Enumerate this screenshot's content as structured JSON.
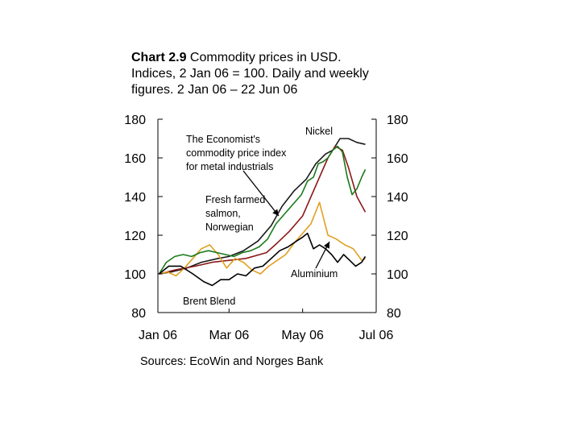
{
  "title": {
    "prefix": "Chart 2.9",
    "text": "Commodity prices in USD. Indices, 2 Jan 06 = 100. Daily and weekly figures. 2 Jan 06 – 22 Jun 06"
  },
  "source": "Sources: EcoWin and Norges Bank",
  "chart_data": {
    "type": "line",
    "title": "Chart 2.9 Commodity prices in USD. Indices, 2 Jan 06 = 100. Daily and weekly figures. 2 Jan 06 – 22 Jun 06",
    "xlim": [
      "2006-01-01",
      "2006-07-01"
    ],
    "ylim": [
      80,
      180
    ],
    "yticks": [
      80,
      100,
      120,
      140,
      160,
      180
    ],
    "xtick_labels": [
      "Jan 06",
      "Mar 06",
      "May 06",
      "Jul 06"
    ],
    "xtick_dates": [
      "2006-01-01",
      "2006-03-01",
      "2006-05-01",
      "2006-07-01"
    ],
    "grid": false,
    "legend": "none (inline annotations)",
    "annotations": [
      {
        "text": "Nickel",
        "series": "Nickel"
      },
      {
        "text": "The Economist's commodity price index for metal industrials",
        "series": "The Economist's commodity price index for metal industrials",
        "lines": [
          "The Economist's",
          "commodity price index",
          "for metal industrials"
        ]
      },
      {
        "text": "Fresh farmed salmon, Norwegian",
        "series": "Fresh farmed salmon, Norwegian",
        "lines": [
          "Fresh farmed",
          "salmon,",
          "Norwegian"
        ]
      },
      {
        "text": "Aluminium",
        "series": "Aluminium"
      },
      {
        "text": "Brent Blend",
        "series": "Brent Blend"
      }
    ],
    "series": [
      {
        "name": "Nickel",
        "color": "#1a1a1a",
        "style": "daily",
        "x": [
          "2006-01-02",
          "2006-01-12",
          "2006-01-25",
          "2006-02-06",
          "2006-02-20",
          "2006-03-01",
          "2006-03-13",
          "2006-03-25",
          "2006-04-05",
          "2006-04-14",
          "2006-04-24",
          "2006-05-04",
          "2006-05-12",
          "2006-05-20",
          "2006-05-26",
          "2006-06-01",
          "2006-06-08",
          "2006-06-15",
          "2006-06-22"
        ],
        "y": [
          100,
          101,
          103,
          106,
          108,
          109,
          112,
          117,
          125,
          135,
          143,
          149,
          157,
          162,
          164,
          170,
          170,
          168,
          167
        ]
      },
      {
        "name": "The Economist's commodity price index for metal industrials",
        "color": "#8b1a1a",
        "style": "daily",
        "x": [
          "2006-01-02",
          "2006-01-15",
          "2006-02-01",
          "2006-02-15",
          "2006-03-01",
          "2006-03-15",
          "2006-04-01",
          "2006-04-10",
          "2006-04-20",
          "2006-05-01",
          "2006-05-08",
          "2006-05-15",
          "2006-05-22",
          "2006-05-28",
          "2006-06-03",
          "2006-06-08",
          "2006-06-15",
          "2006-06-22"
        ],
        "y": [
          100,
          102,
          104,
          106,
          107,
          108,
          111,
          116,
          122,
          130,
          140,
          150,
          160,
          166,
          164,
          155,
          140,
          132
        ]
      },
      {
        "name": "Fresh farmed salmon, Norwegian",
        "color": "#e0a020",
        "style": "weekly",
        "x": [
          "2006-01-02",
          "2006-01-09",
          "2006-01-16",
          "2006-01-23",
          "2006-01-30",
          "2006-02-06",
          "2006-02-13",
          "2006-02-20",
          "2006-02-27",
          "2006-03-06",
          "2006-03-13",
          "2006-03-20",
          "2006-03-27",
          "2006-04-03",
          "2006-04-10",
          "2006-04-17",
          "2006-04-24",
          "2006-05-01",
          "2006-05-08",
          "2006-05-15",
          "2006-05-22",
          "2006-05-29",
          "2006-06-05",
          "2006-06-12",
          "2006-06-19",
          "2006-06-22"
        ],
        "y": [
          100,
          101,
          99,
          103,
          108,
          113,
          115,
          110,
          103,
          108,
          106,
          102,
          100,
          104,
          107,
          110,
          116,
          121,
          126,
          137,
          120,
          118,
          115,
          113,
          107,
          108
        ]
      },
      {
        "name": "Aluminium",
        "color": "#1a7a1a",
        "style": "daily",
        "x": [
          "2006-01-02",
          "2006-01-08",
          "2006-01-15",
          "2006-01-22",
          "2006-01-29",
          "2006-02-05",
          "2006-02-12",
          "2006-02-19",
          "2006-02-26",
          "2006-03-05",
          "2006-03-12",
          "2006-03-19",
          "2006-03-26",
          "2006-04-02",
          "2006-04-09",
          "2006-04-16",
          "2006-04-23",
          "2006-04-30",
          "2006-05-05",
          "2006-05-10",
          "2006-05-14",
          "2006-05-18",
          "2006-05-22",
          "2006-05-26",
          "2006-05-30",
          "2006-06-03",
          "2006-06-07",
          "2006-06-11",
          "2006-06-15",
          "2006-06-19",
          "2006-06-22"
        ],
        "y": [
          100,
          106,
          109,
          110,
          109,
          111,
          112,
          111,
          110,
          109,
          111,
          112,
          114,
          118,
          126,
          131,
          136,
          141,
          148,
          150,
          157,
          158,
          160,
          164,
          166,
          163,
          150,
          141,
          144,
          150,
          154
        ]
      },
      {
        "name": "Brent Blend",
        "color": "#000000",
        "style": "daily",
        "x": [
          "2006-01-02",
          "2006-01-10",
          "2006-01-20",
          "2006-01-30",
          "2006-02-08",
          "2006-02-15",
          "2006-02-22",
          "2006-03-01",
          "2006-03-08",
          "2006-03-15",
          "2006-03-22",
          "2006-03-29",
          "2006-04-05",
          "2006-04-12",
          "2006-04-19",
          "2006-04-26",
          "2006-05-01",
          "2006-05-05",
          "2006-05-10",
          "2006-05-15",
          "2006-05-20",
          "2006-05-25",
          "2006-05-30",
          "2006-06-04",
          "2006-06-09",
          "2006-06-14",
          "2006-06-19",
          "2006-06-22"
        ],
        "y": [
          100,
          104,
          104,
          100,
          96,
          94,
          97,
          97,
          100,
          99,
          103,
          104,
          108,
          112,
          114,
          117,
          119,
          121,
          113,
          115,
          113,
          110,
          106,
          110,
          107,
          104,
          106,
          109
        ]
      }
    ]
  }
}
